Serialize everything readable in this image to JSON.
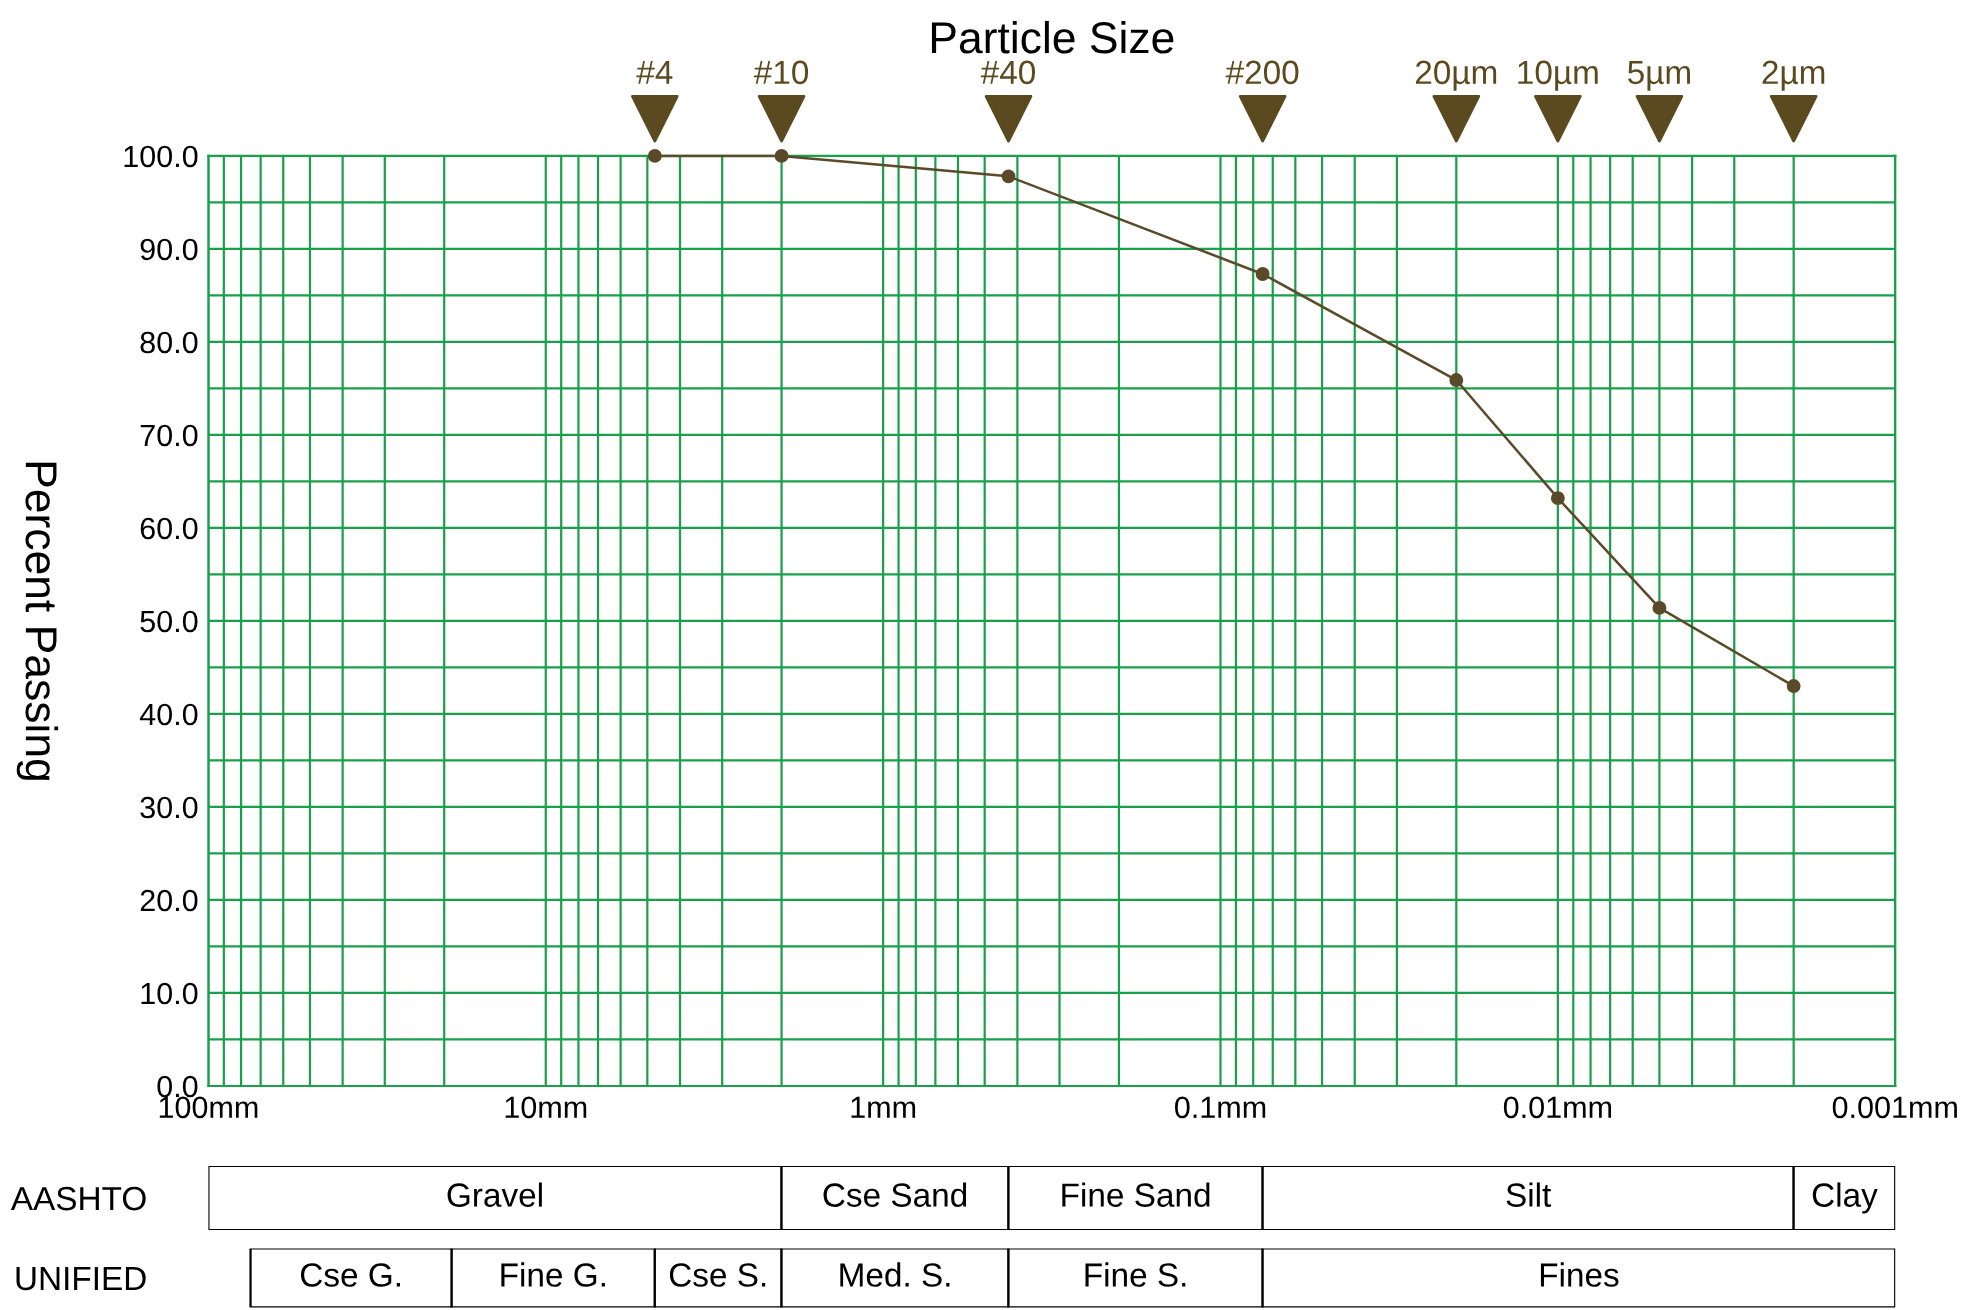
{
  "chart_data": [
    {
      "type": "line",
      "title": "Particle Size",
      "ylabel": "Percent Passing",
      "x": [
        4.75,
        2.0,
        0.425,
        0.075,
        0.02,
        0.01,
        0.005,
        0.002
      ],
      "series": [
        {
          "color": "#5a4a2a",
          "values": [
            100.0,
            100.0,
            97.8,
            87.3,
            75.9,
            63.2,
            51.4,
            43.0
          ]
        }
      ],
      "marker": "circle",
      "line_style": "solid",
      "log": "x",
      "grid": true,
      "xlim": [
        100,
        0.001
      ],
      "xticks": [
        {
          "value": 100,
          "label": "100mm"
        },
        {
          "value": 10,
          "label": "10mm"
        },
        {
          "value": 1,
          "label": "1mm"
        },
        {
          "value": 0.1,
          "label": "0.1mm"
        },
        {
          "value": 0.01,
          "label": "0.01mm"
        },
        {
          "value": 0.001,
          "label": "0.001mm"
        }
      ],
      "annotations": [
        "#4",
        "#10",
        "#40",
        "#200",
        "20µm",
        "10µm",
        "5µm",
        "2µm"
      ],
      "ylim": [
        0,
        100
      ],
      "yticks": [
        {
          "value": 0,
          "label": "0.0"
        },
        {
          "value": 5,
          "label": null
        },
        {
          "value": 10,
          "label": "10.0"
        },
        {
          "value": 15,
          "label": null
        },
        {
          "value": 20,
          "label": "20.0"
        },
        {
          "value": 25,
          "label": null
        },
        {
          "value": 30,
          "label": "30.0"
        },
        {
          "value": 35,
          "label": null
        },
        {
          "value": 40,
          "label": "40.0"
        },
        {
          "value": 45,
          "label": null
        },
        {
          "value": 50,
          "label": "50.0"
        },
        {
          "value": 55,
          "label": null
        },
        {
          "value": 60,
          "label": "60.0"
        },
        {
          "value": 65,
          "label": null
        },
        {
          "value": 70,
          "label": "70.0"
        },
        {
          "value": 75,
          "label": null
        },
        {
          "value": 80,
          "label": "80.0"
        },
        {
          "value": 85,
          "label": null
        },
        {
          "value": 90,
          "label": "90.0"
        },
        {
          "value": 95,
          "label": null
        },
        {
          "value": 100,
          "label": "100.0"
        }
      ]
    },
    {
      "type": "bar",
      "orientation": "horizontal",
      "categories": [
        "AASHTO"
      ],
      "log": "x",
      "xlim": [
        100,
        0.001
      ],
      "tick_labels": "y",
      "series": [
        {
          "name": "Gravel",
          "color": "#ffffff",
          "base": [
            2.0
          ],
          "values": [
            98.0
          ]
        },
        {
          "name": "Cse Sand",
          "color": "#ffffff",
          "base": [
            0.425
          ],
          "values": [
            1.575
          ]
        },
        {
          "name": "Fine Sand",
          "color": "#ffffff",
          "base": [
            0.075
          ],
          "values": [
            0.35
          ]
        },
        {
          "name": "Silt",
          "color": "#ffffff",
          "base": [
            0.002
          ],
          "values": [
            0.073
          ]
        },
        {
          "name": "Clay",
          "color": "#ffffff",
          "base": [
            0.001
          ],
          "values": [
            0.001
          ]
        }
      ]
    },
    {
      "type": "bar",
      "orientation": "horizontal",
      "categories": [
        "UNIFIED"
      ],
      "log": "x",
      "xlim": [
        100,
        0.001
      ],
      "tick_labels": "y",
      "series": [
        {
          "name": "Cse G.",
          "color": "#ffffff",
          "base": [
            19.0
          ],
          "values": [
            56.0
          ]
        },
        {
          "name": "Fine G.",
          "color": "#ffffff",
          "base": [
            4.75
          ],
          "values": [
            14.25
          ]
        },
        {
          "name": "Cse S.",
          "color": "#ffffff",
          "base": [
            2.0
          ],
          "values": [
            2.75
          ]
        },
        {
          "name": "Med. S.",
          "color": "#ffffff",
          "base": [
            0.425
          ],
          "values": [
            1.575
          ]
        },
        {
          "name": "Fine S.",
          "color": "#ffffff",
          "base": [
            0.075
          ],
          "values": [
            0.35
          ]
        },
        {
          "name": "Fines",
          "color": "#ffffff",
          "base": [
            0.001
          ],
          "values": [
            0.074
          ]
        }
      ]
    }
  ]
}
